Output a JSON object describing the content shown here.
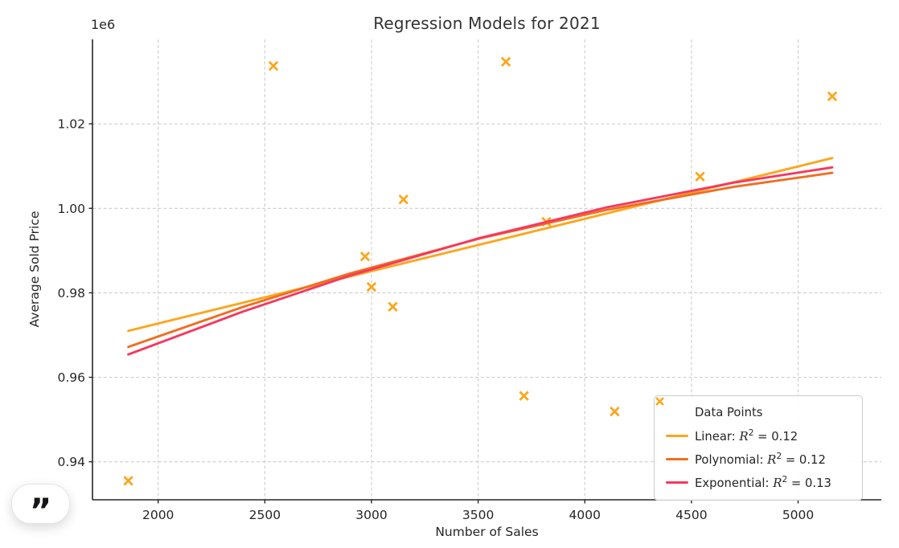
{
  "background": "#ffffff",
  "badge": {
    "glyph": "”"
  },
  "chart_data": {
    "type": "scatter",
    "title": "Regression Models for 2021",
    "xlabel": "Number of Sales",
    "ylabel": "Average Sold Price",
    "y_offset_text": "1e6",
    "xlim": [
      1692,
      5390
    ],
    "ylim": [
      931000,
      1040000
    ],
    "grid": "dashed",
    "legend_position": "lower right",
    "x_ticks": [
      {
        "v": 2000,
        "label": "2000"
      },
      {
        "v": 2500,
        "label": "2500"
      },
      {
        "v": 3000,
        "label": "3000"
      },
      {
        "v": 3500,
        "label": "3500"
      },
      {
        "v": 4000,
        "label": "4000"
      },
      {
        "v": 4500,
        "label": "4500"
      },
      {
        "v": 5000,
        "label": "5000"
      }
    ],
    "y_ticks": [
      {
        "v": 940000,
        "label": "0.94"
      },
      {
        "v": 960000,
        "label": "0.96"
      },
      {
        "v": 980000,
        "label": "0.98"
      },
      {
        "v": 1000000,
        "label": "1.00"
      },
      {
        "v": 1020000,
        "label": "1.02"
      }
    ],
    "scatter": {
      "label": "Data Points",
      "color": "#FCA61E",
      "marker": "x",
      "points": [
        [
          1860,
          935500
        ],
        [
          2540,
          1033700
        ],
        [
          2970,
          988600
        ],
        [
          3000,
          981400
        ],
        [
          3100,
          976700
        ],
        [
          3150,
          1002100
        ],
        [
          3630,
          1034700
        ],
        [
          3715,
          955600
        ],
        [
          3820,
          996800
        ],
        [
          4140,
          951900
        ],
        [
          4540,
          1007500
        ],
        [
          5160,
          1026500
        ]
      ]
    },
    "series": [
      {
        "name": "Linear",
        "r2": "0.12",
        "color": "#FCA61E",
        "points": [
          [
            1860,
            971000
          ],
          [
            5160,
            1011900
          ]
        ]
      },
      {
        "name": "Polynomial",
        "r2": "0.12",
        "color": "#F06E20",
        "points": [
          [
            1860,
            967200
          ],
          [
            2400,
            976700
          ],
          [
            2900,
            984600
          ],
          [
            3510,
            992900
          ],
          [
            4100,
            999600
          ],
          [
            4700,
            1005100
          ],
          [
            5160,
            1008400
          ]
        ]
      },
      {
        "name": "Exponential",
        "r2": "0.13",
        "color": "#F5395F",
        "points": [
          [
            1860,
            965400
          ],
          [
            2400,
            975600
          ],
          [
            2900,
            984100
          ],
          [
            3510,
            993000
          ],
          [
            4100,
            1000200
          ],
          [
            4700,
            1006100
          ],
          [
            5160,
            1009700
          ]
        ]
      }
    ]
  }
}
